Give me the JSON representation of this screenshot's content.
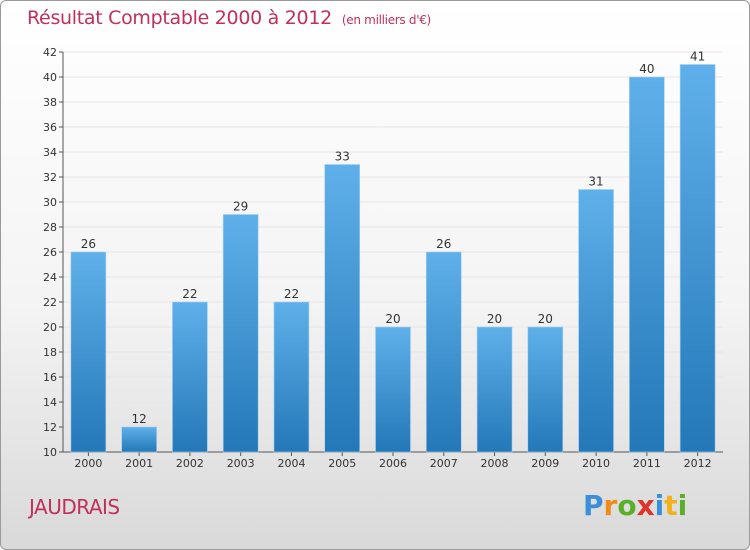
{
  "title": "Résultat Comptable 2000 à 2012",
  "subtitle": "(en milliers d'€)",
  "town": "JAUDRAIS",
  "logo": {
    "text": "Proxiti",
    "letters": [
      "P",
      "r",
      "o",
      "x",
      "i",
      "t",
      "i"
    ]
  },
  "colors": {
    "title": "#c0305a",
    "bar_light": "#5fb0ea",
    "bar_dark": "#2478b8",
    "grid": "#e6e6e6"
  },
  "chart_data": {
    "type": "bar",
    "title": "Résultat Comptable 2000 à 2012",
    "subtitle": "(en milliers d'€)",
    "xlabel": "",
    "ylabel": "",
    "categories": [
      "2000",
      "2001",
      "2002",
      "2003",
      "2004",
      "2005",
      "2006",
      "2007",
      "2008",
      "2009",
      "2010",
      "2011",
      "2012"
    ],
    "values": [
      26,
      12,
      22,
      29,
      22,
      33,
      20,
      26,
      20,
      20,
      31,
      40,
      41
    ],
    "ylim": [
      10,
      42
    ],
    "yticks": [
      10,
      12,
      14,
      16,
      18,
      20,
      22,
      24,
      26,
      28,
      30,
      32,
      34,
      36,
      38,
      40,
      42
    ],
    "grid": true,
    "data_labels": true
  }
}
